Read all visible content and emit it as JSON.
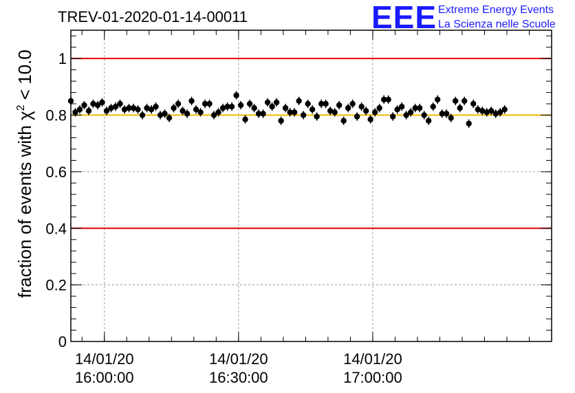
{
  "logo": {
    "letters": "EEE",
    "line1": "Extreme Energy Events",
    "line2": "La Scienza nelle Scuole"
  },
  "colors": {
    "threshold": "#e00000",
    "reference": "#f0b800",
    "markers": "#000000",
    "logo": "#1a1aff",
    "grid": "#9a9a9a"
  },
  "chart_data": {
    "type": "scatter",
    "title": "TREV-01-2020-01-14-00011",
    "xlabel": "",
    "ylabel": "fraction of events with χ² < 10.0",
    "ylabel_parts": {
      "prefix": "fraction of events with ",
      "symbol": "χ",
      "superscript": "2",
      "suffix": " < 10.0"
    },
    "x_axis": {
      "kind": "time",
      "range": [
        "2020-01-14 15:52:30",
        "2020-01-14 17:40:00"
      ],
      "ticks": [
        {
          "time": "2020-01-14 16:00:00",
          "date_label": "14/01/20",
          "time_label": "16:00:00"
        },
        {
          "time": "2020-01-14 16:30:00",
          "date_label": "14/01/20",
          "time_label": "16:30:00"
        },
        {
          "time": "2020-01-14 17:00:00",
          "date_label": "14/01/20",
          "time_label": "17:00:00"
        }
      ]
    },
    "ylim": [
      0,
      1.1
    ],
    "yticks": [
      0,
      0.2,
      0.4,
      0.6,
      0.8,
      1
    ],
    "ytick_labels": [
      "0",
      "0.2",
      "0.4",
      "0.6",
      "0.8",
      "1"
    ],
    "grid": true,
    "reference_lines": [
      {
        "y": 1.0,
        "color": "#e00000"
      },
      {
        "y": 0.4,
        "color": "#e00000"
      },
      {
        "y": 0.8,
        "color": "#f0b800"
      }
    ],
    "error_bar": 0.015,
    "series": [
      {
        "times": [
          "15:52:30",
          "15:53:30",
          "15:54:30",
          "15:55:30",
          "15:56:30",
          "15:57:30",
          "15:58:30",
          "15:59:30",
          "16:00:30",
          "16:01:30",
          "16:02:30",
          "16:03:30",
          "16:04:30",
          "16:05:30",
          "16:06:30",
          "16:07:30",
          "16:08:30",
          "16:09:30",
          "16:10:30",
          "16:11:30",
          "16:12:30",
          "16:13:30",
          "16:14:30",
          "16:15:30",
          "16:16:30",
          "16:17:30",
          "16:18:30",
          "16:19:30",
          "16:20:30",
          "16:21:30",
          "16:22:30",
          "16:23:30",
          "16:24:30",
          "16:25:30",
          "16:26:30",
          "16:27:30",
          "16:28:30",
          "16:29:30",
          "16:30:30",
          "16:31:30",
          "16:32:30",
          "16:33:30",
          "16:34:30",
          "16:35:30",
          "16:36:30",
          "16:37:30",
          "16:38:30",
          "16:39:30",
          "16:40:30",
          "16:41:30",
          "16:42:30",
          "16:43:30",
          "16:44:30",
          "16:45:30",
          "16:46:30",
          "16:47:30",
          "16:48:30",
          "16:49:30",
          "16:50:30",
          "16:51:30",
          "16:52:30",
          "16:53:30",
          "16:54:30",
          "16:55:30",
          "16:56:30",
          "16:57:30",
          "16:58:30",
          "16:59:30",
          "17:00:30",
          "17:01:30",
          "17:02:30",
          "17:03:30",
          "17:04:30",
          "17:05:30",
          "17:06:30",
          "17:07:30",
          "17:08:30",
          "17:09:30",
          "17:10:30",
          "17:11:30",
          "17:12:30",
          "17:13:30",
          "17:14:30",
          "17:15:30",
          "17:16:30",
          "17:17:30",
          "17:18:30",
          "17:19:30",
          "17:20:30",
          "17:21:30",
          "17:22:30",
          "17:23:30",
          "17:24:30",
          "17:25:30",
          "17:26:30",
          "17:27:30",
          "17:28:30",
          "17:29:30"
        ],
        "values": [
          0.85,
          0.81,
          0.82,
          0.835,
          0.815,
          0.84,
          0.835,
          0.845,
          0.815,
          0.825,
          0.83,
          0.84,
          0.82,
          0.825,
          0.825,
          0.82,
          0.8,
          0.825,
          0.82,
          0.83,
          0.8,
          0.805,
          0.79,
          0.825,
          0.84,
          0.815,
          0.805,
          0.85,
          0.82,
          0.81,
          0.84,
          0.84,
          0.8,
          0.81,
          0.825,
          0.83,
          0.83,
          0.87,
          0.835,
          0.785,
          0.84,
          0.825,
          0.805,
          0.805,
          0.845,
          0.83,
          0.845,
          0.78,
          0.825,
          0.81,
          0.81,
          0.85,
          0.8,
          0.84,
          0.82,
          0.795,
          0.84,
          0.84,
          0.815,
          0.81,
          0.835,
          0.78,
          0.825,
          0.84,
          0.795,
          0.83,
          0.815,
          0.785,
          0.81,
          0.825,
          0.855,
          0.855,
          0.795,
          0.82,
          0.83,
          0.8,
          0.81,
          0.825,
          0.825,
          0.8,
          0.78,
          0.83,
          0.855,
          0.805,
          0.805,
          0.79,
          0.85,
          0.825,
          0.85,
          0.77,
          0.84,
          0.82,
          0.815,
          0.81,
          0.815,
          0.805,
          0.81,
          0.82
        ]
      }
    ]
  }
}
